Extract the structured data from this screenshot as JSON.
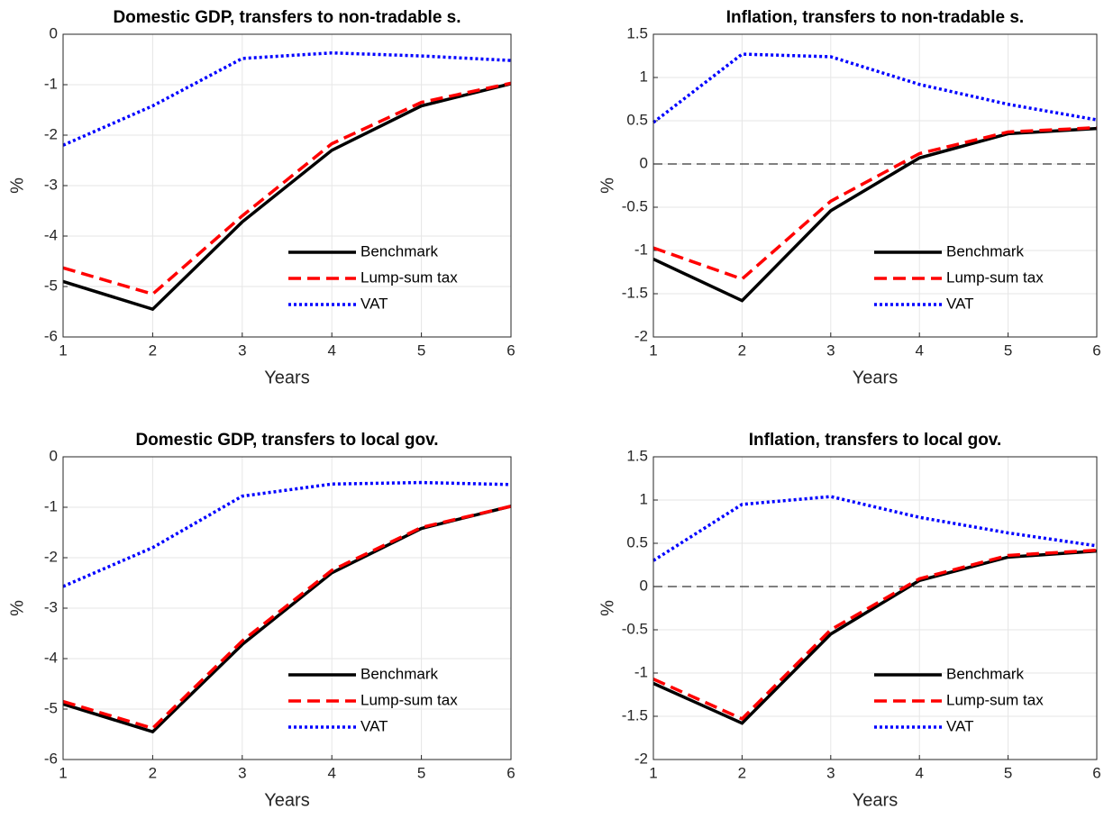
{
  "chart_data": [
    {
      "type": "line",
      "title": "Domestic GDP, transfers to non-tradable s.",
      "x_label": "Years",
      "y_label": "%",
      "x": [
        1,
        2,
        3,
        4,
        5,
        6
      ],
      "xlim": [
        1,
        6
      ],
      "xticks": [
        1,
        2,
        3,
        4,
        5,
        6
      ],
      "ylim": [
        -6,
        0
      ],
      "yticks": [
        -6,
        -5,
        -4,
        -3,
        -2,
        -1,
        0
      ],
      "grid": true,
      "legend": "lower right",
      "hline": 0,
      "series": [
        {
          "name": "Benchmark",
          "color": "#000000",
          "dash": "solid",
          "values": [
            -4.9,
            -5.45,
            -3.72,
            -2.3,
            -1.42,
            -0.98
          ]
        },
        {
          "name": "Lump-sum tax",
          "color": "#ff0000",
          "dash": "dashed",
          "values": [
            -4.63,
            -5.15,
            -3.6,
            -2.17,
            -1.35,
            -0.97
          ]
        },
        {
          "name": "VAT",
          "color": "#0000ff",
          "dash": "dotted",
          "values": [
            -2.2,
            -1.42,
            -0.48,
            -0.37,
            -0.43,
            -0.52
          ]
        }
      ]
    },
    {
      "type": "line",
      "title": "Inflation, transfers to non-tradable s.",
      "x_label": "Years",
      "y_label": "%",
      "x": [
        1,
        2,
        3,
        4,
        5,
        6
      ],
      "xlim": [
        1,
        6
      ],
      "xticks": [
        1,
        2,
        3,
        4,
        5,
        6
      ],
      "ylim": [
        -2,
        1.5
      ],
      "yticks": [
        -2,
        -1.5,
        -1,
        -0.5,
        0,
        0.5,
        1,
        1.5
      ],
      "grid": true,
      "legend": "lower right",
      "hline": 0,
      "series": [
        {
          "name": "Benchmark",
          "color": "#000000",
          "dash": "solid",
          "values": [
            -1.1,
            -1.58,
            -0.54,
            0.07,
            0.35,
            0.41
          ]
        },
        {
          "name": "Lump-sum tax",
          "color": "#ff0000",
          "dash": "dashed",
          "values": [
            -0.97,
            -1.33,
            -0.43,
            0.12,
            0.37,
            0.42
          ]
        },
        {
          "name": "VAT",
          "color": "#0000ff",
          "dash": "dotted",
          "values": [
            0.48,
            1.27,
            1.24,
            0.92,
            0.69,
            0.51
          ]
        }
      ]
    },
    {
      "type": "line",
      "title": "Domestic GDP, transfers to local gov.",
      "x_label": "Years",
      "y_label": "%",
      "x": [
        1,
        2,
        3,
        4,
        5,
        6
      ],
      "xlim": [
        1,
        6
      ],
      "xticks": [
        1,
        2,
        3,
        4,
        5,
        6
      ],
      "ylim": [
        -6,
        0
      ],
      "yticks": [
        -6,
        -5,
        -4,
        -3,
        -2,
        -1,
        0
      ],
      "grid": true,
      "legend": "lower right",
      "hline": 0,
      "series": [
        {
          "name": "Benchmark",
          "color": "#000000",
          "dash": "solid",
          "values": [
            -4.9,
            -5.45,
            -3.72,
            -2.3,
            -1.42,
            -0.98
          ]
        },
        {
          "name": "Lump-sum tax",
          "color": "#ff0000",
          "dash": "dashed",
          "values": [
            -4.85,
            -5.38,
            -3.65,
            -2.25,
            -1.4,
            -0.98
          ]
        },
        {
          "name": "VAT",
          "color": "#0000ff",
          "dash": "dotted",
          "values": [
            -2.57,
            -1.8,
            -0.78,
            -0.54,
            -0.51,
            -0.55
          ]
        }
      ]
    },
    {
      "type": "line",
      "title": "Inflation, transfers to local gov.",
      "x_label": "Years",
      "y_label": "%",
      "x": [
        1,
        2,
        3,
        4,
        5,
        6
      ],
      "xlim": [
        1,
        6
      ],
      "xticks": [
        1,
        2,
        3,
        4,
        5,
        6
      ],
      "ylim": [
        -2,
        1.5
      ],
      "yticks": [
        -2,
        -1.5,
        -1,
        -0.5,
        0,
        0.5,
        1,
        1.5
      ],
      "grid": true,
      "legend": "lower right",
      "hline": 0,
      "series": [
        {
          "name": "Benchmark",
          "color": "#000000",
          "dash": "solid",
          "values": [
            -1.12,
            -1.58,
            -0.55,
            0.07,
            0.34,
            0.41
          ]
        },
        {
          "name": "Lump-sum tax",
          "color": "#ff0000",
          "dash": "dashed",
          "values": [
            -1.07,
            -1.53,
            -0.5,
            0.09,
            0.36,
            0.42
          ]
        },
        {
          "name": "VAT",
          "color": "#0000ff",
          "dash": "dotted",
          "values": [
            0.3,
            0.95,
            1.04,
            0.8,
            0.62,
            0.47
          ]
        }
      ]
    }
  ]
}
